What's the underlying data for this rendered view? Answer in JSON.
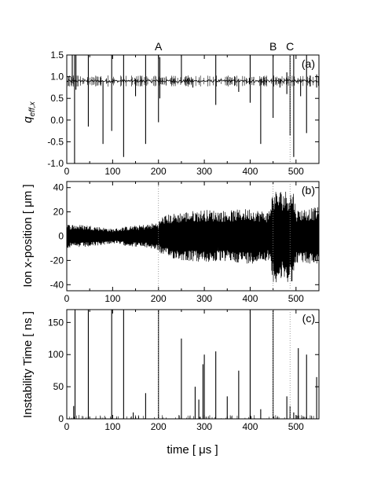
{
  "chart_data": [
    {
      "type": "line",
      "panel_label": "(a)",
      "ylabel_main": "q",
      "ylabel_sub": "eff,x",
      "xlim": [
        0,
        550
      ],
      "ylim": [
        -1.0,
        1.5
      ],
      "yticks": [
        "-1.0",
        "-0.5",
        "0.0",
        "0.5",
        "1.0",
        "1.5"
      ],
      "xticks": [
        "0",
        "100",
        "200",
        "300",
        "400",
        "500"
      ],
      "baseline": 0.9,
      "top_markers": [
        {
          "label": "A",
          "x": 200
        },
        {
          "label": "B",
          "x": 450
        },
        {
          "label": "C",
          "x": 487
        }
      ],
      "spikes": [
        {
          "x": 12,
          "lo": 0.85,
          "hi": 1.5
        },
        {
          "x": 17,
          "lo": -1.0,
          "hi": 1.5
        },
        {
          "x": 20,
          "lo": 0.7,
          "hi": 1.5
        },
        {
          "x": 47,
          "lo": -0.15,
          "hi": 1.5
        },
        {
          "x": 79,
          "lo": -0.55,
          "hi": 0.9
        },
        {
          "x": 98,
          "lo": -0.25,
          "hi": 1.5
        },
        {
          "x": 124,
          "lo": -0.85,
          "hi": 1.5
        },
        {
          "x": 150,
          "lo": 0.55,
          "hi": 0.95
        },
        {
          "x": 172,
          "lo": -0.55,
          "hi": 1.5
        },
        {
          "x": 200,
          "lo": -0.05,
          "hi": 1.5
        },
        {
          "x": 203,
          "lo": 0.5,
          "hi": 1.45
        },
        {
          "x": 250,
          "lo": 0.85,
          "hi": 1.5
        },
        {
          "x": 275,
          "lo": 0.75,
          "hi": 0.95
        },
        {
          "x": 325,
          "lo": 0.35,
          "hi": 1.5
        },
        {
          "x": 375,
          "lo": 0.65,
          "hi": 0.95
        },
        {
          "x": 400,
          "lo": 0.4,
          "hi": 1.5
        },
        {
          "x": 423,
          "lo": -0.55,
          "hi": 0.95
        },
        {
          "x": 450,
          "lo": 0.05,
          "hi": 1.5
        },
        {
          "x": 465,
          "lo": 0.75,
          "hi": 0.95
        },
        {
          "x": 480,
          "lo": 0.6,
          "hi": 1.1
        },
        {
          "x": 487,
          "lo": -0.35,
          "hi": 1.5
        },
        {
          "x": 495,
          "lo": -0.85,
          "hi": 1.5
        },
        {
          "x": 510,
          "lo": 0.55,
          "hi": 0.95
        },
        {
          "x": 523,
          "lo": -0.3,
          "hi": 1.5
        },
        {
          "x": 545,
          "lo": 0.75,
          "hi": 1.05
        }
      ]
    },
    {
      "type": "line",
      "panel_label": "(b)",
      "ylabel": "Ion x-position  [ μm ]",
      "xlim": [
        0,
        550
      ],
      "ylim": [
        -45,
        45
      ],
      "yticks": [
        "-40",
        "-20",
        "0",
        "20",
        "40"
      ],
      "xticks": [
        "0",
        "100",
        "200",
        "300",
        "400",
        "500"
      ],
      "envelope": {
        "x": [
          0,
          50,
          100,
          130,
          180,
          200,
          210,
          250,
          300,
          350,
          400,
          440,
          450,
          495,
          500,
          550
        ],
        "amp": [
          10,
          9,
          6,
          8,
          10,
          12,
          17,
          20,
          22,
          21,
          23,
          20,
          38,
          38,
          22,
          24
        ]
      },
      "reference_lines_x": [
        200,
        450,
        487
      ]
    },
    {
      "type": "bar",
      "panel_label": "(c)",
      "ylabel": "Instability Time  [ ns ]",
      "xlabel": "time  [ μs ]",
      "xlim": [
        0,
        550
      ],
      "ylim": [
        0,
        170
      ],
      "yticks": [
        "0",
        "50",
        "100",
        "150"
      ],
      "xticks": [
        "0",
        "100",
        "200",
        "300",
        "400",
        "500"
      ],
      "spikes": [
        {
          "x": 15,
          "v": 20
        },
        {
          "x": 18,
          "v": 170
        },
        {
          "x": 47,
          "v": 170
        },
        {
          "x": 98,
          "v": 170
        },
        {
          "x": 124,
          "v": 170
        },
        {
          "x": 145,
          "v": 10
        },
        {
          "x": 172,
          "v": 40
        },
        {
          "x": 200,
          "v": 170
        },
        {
          "x": 250,
          "v": 125
        },
        {
          "x": 280,
          "v": 50
        },
        {
          "x": 288,
          "v": 30
        },
        {
          "x": 297,
          "v": 85
        },
        {
          "x": 300,
          "v": 100
        },
        {
          "x": 325,
          "v": 105
        },
        {
          "x": 350,
          "v": 35
        },
        {
          "x": 375,
          "v": 75
        },
        {
          "x": 400,
          "v": 170
        },
        {
          "x": 423,
          "v": 15
        },
        {
          "x": 450,
          "v": 170
        },
        {
          "x": 480,
          "v": 35
        },
        {
          "x": 487,
          "v": 20
        },
        {
          "x": 495,
          "v": 10
        },
        {
          "x": 505,
          "v": 110
        },
        {
          "x": 523,
          "v": 100
        },
        {
          "x": 545,
          "v": 65
        }
      ],
      "reference_lines_x": [
        200,
        450,
        487
      ]
    }
  ]
}
